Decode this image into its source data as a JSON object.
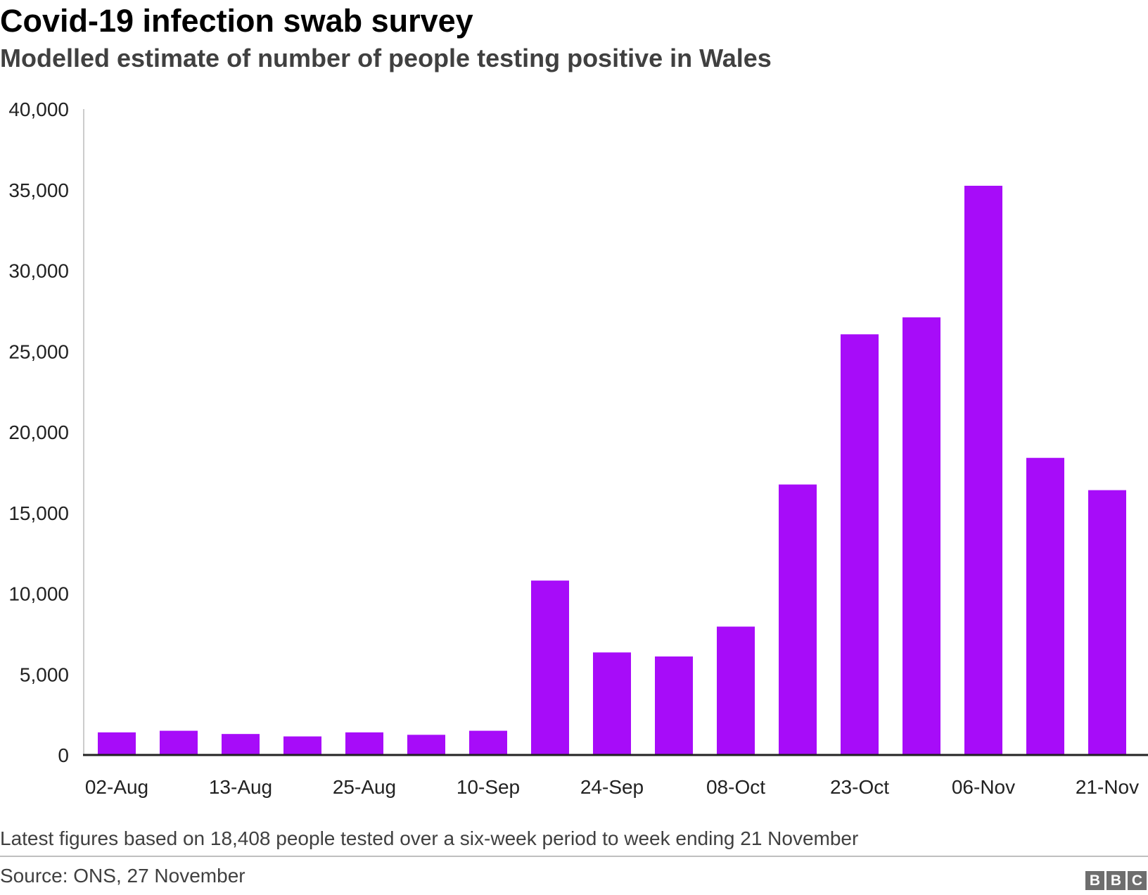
{
  "chart_data": {
    "type": "bar",
    "title": "Covid-19 infection swab survey",
    "subtitle": "Modelled estimate of number of people testing positive in Wales",
    "categories": [
      "02-Aug",
      "",
      "13-Aug",
      "",
      "25-Aug",
      "",
      "10-Sep",
      "",
      "24-Sep",
      "",
      "08-Oct",
      "",
      "23-Oct",
      "",
      "06-Nov",
      "",
      "21-Nov"
    ],
    "series": [
      {
        "values": [
          1400,
          1500,
          1300,
          1150,
          1400,
          1250,
          1500,
          10800,
          6350,
          6100,
          7950,
          16750,
          26050,
          27100,
          35250,
          18400,
          16400
        ],
        "color": "#a70cf9"
      }
    ],
    "y_ticks": [
      0,
      5000,
      10000,
      15000,
      20000,
      25000,
      30000,
      35000,
      40000
    ],
    "ylim": [
      0,
      40000
    ],
    "xlabel": "",
    "ylabel": "",
    "grid": false,
    "legend": "none"
  },
  "footer": {
    "note": "Latest figures based on 18,408 people tested over a six-week period to week ending 21 November",
    "source": "Source: ONS, 27 November",
    "logo": [
      "B",
      "B",
      "C"
    ]
  }
}
